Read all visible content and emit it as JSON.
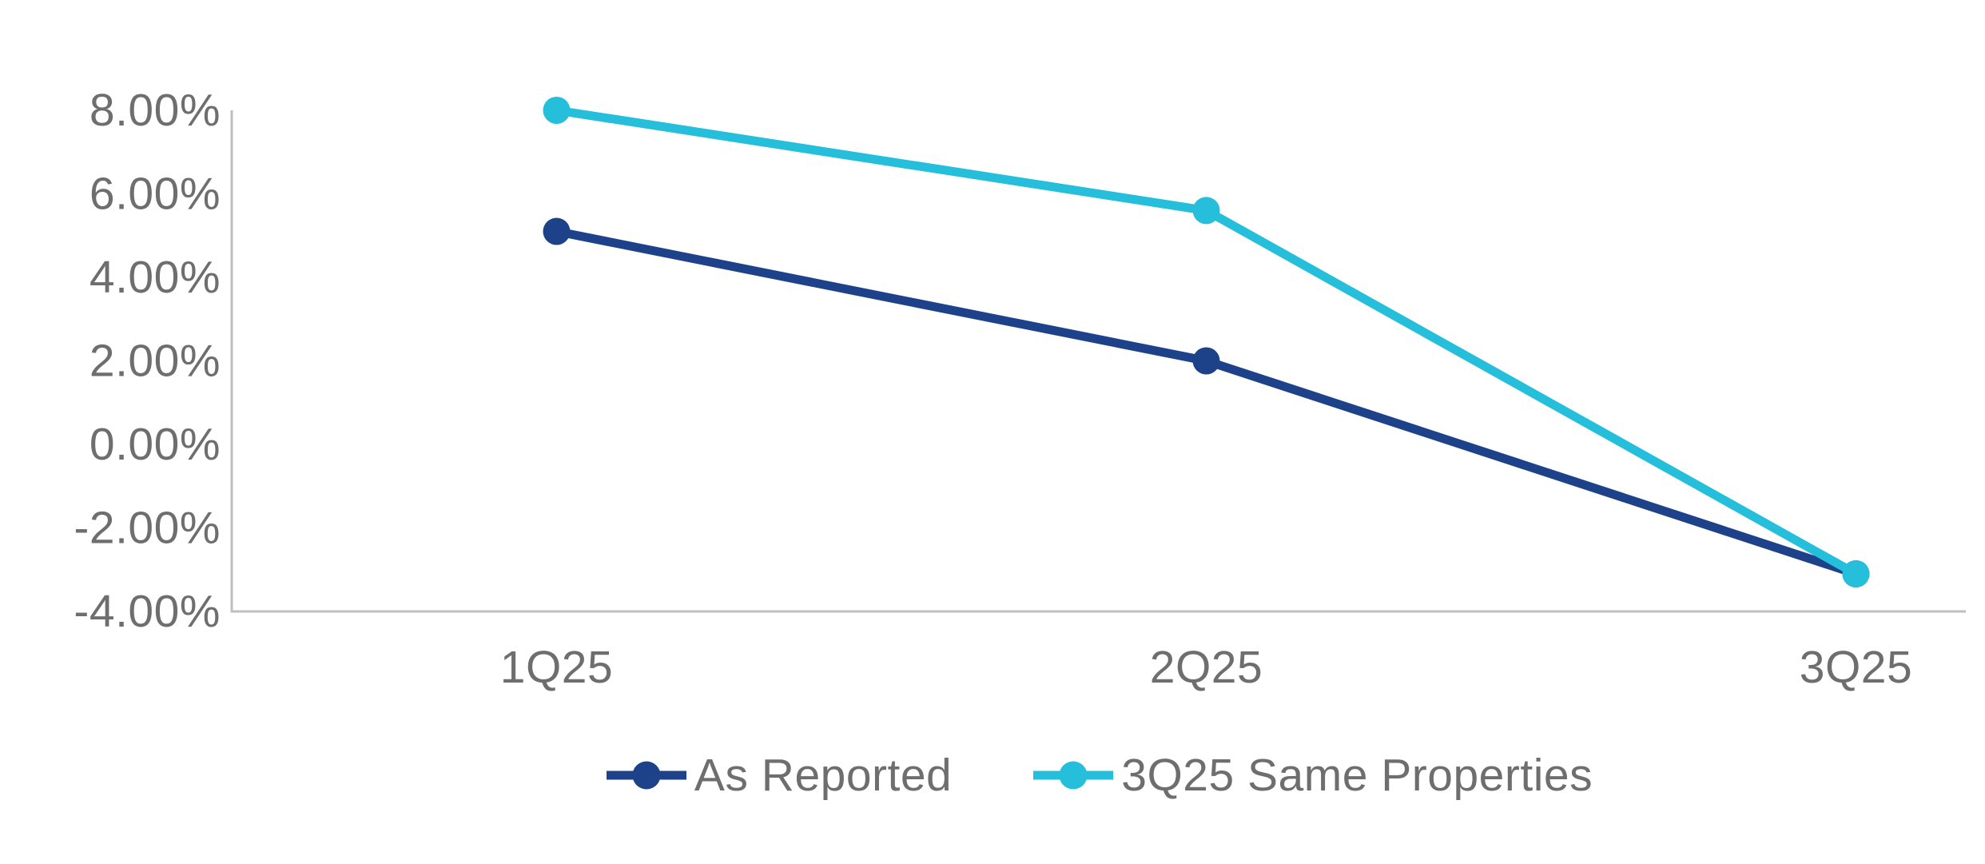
{
  "chart_data": {
    "type": "line",
    "title": "",
    "xlabel": "",
    "ylabel": "",
    "categories": [
      "1Q25",
      "2Q25",
      "3Q25"
    ],
    "series": [
      {
        "name": "As Reported",
        "color": "#1E4289",
        "values": [
          5.1,
          2.0,
          -3.1
        ]
      },
      {
        "name": "3Q25 Same Properties",
        "color": "#25BFDB",
        "values": [
          8.0,
          5.6,
          -3.1
        ]
      }
    ],
    "ylim": [
      -4,
      8
    ],
    "y_ticks": [
      {
        "value": 8,
        "label": "8.00%"
      },
      {
        "value": 6,
        "label": "6.00%"
      },
      {
        "value": 4,
        "label": "4.00%"
      },
      {
        "value": 2,
        "label": "2.00%"
      },
      {
        "value": 0,
        "label": "0.00%"
      },
      {
        "value": -2,
        "label": "-2.00%"
      },
      {
        "value": -4,
        "label": "-4.00%"
      }
    ],
    "grid": false,
    "legend_position": "bottom",
    "marker": "circle",
    "colors": {
      "axis_line": "#BFBFBF",
      "tick_text": "#6E6E6E",
      "background": "#FFFFFF"
    }
  }
}
